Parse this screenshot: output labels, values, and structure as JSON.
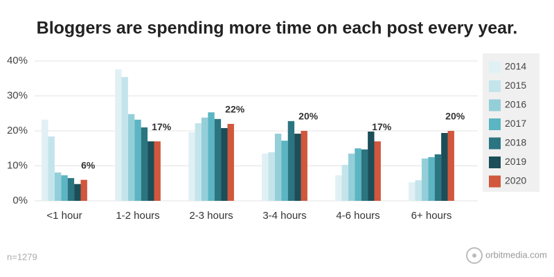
{
  "chart_data": {
    "type": "bar",
    "title": "Bloggers are spending more time on each post every year.",
    "categories": [
      "<1 hour",
      "1-2 hours",
      "2-3 hours",
      "3-4 hours",
      "4-6 hours",
      "6+ hours"
    ],
    "series": [
      {
        "name": "2014",
        "color": "#e1f0f4",
        "values": [
          23.2,
          37.6,
          19.6,
          13.5,
          7.3,
          5.3
        ]
      },
      {
        "name": "2015",
        "color": "#c4e4eb",
        "values": [
          18.4,
          35.4,
          22.2,
          13.9,
          10.3,
          5.9
        ]
      },
      {
        "name": "2016",
        "color": "#94cfd9",
        "values": [
          8.1,
          24.8,
          23.8,
          19.2,
          13.5,
          12.1
        ]
      },
      {
        "name": "2017",
        "color": "#5bb5c2",
        "values": [
          7.3,
          23.2,
          25.3,
          17.2,
          15,
          12.5
        ]
      },
      {
        "name": "2018",
        "color": "#2b7581",
        "values": [
          6.5,
          21,
          23.4,
          22.8,
          14.7,
          13.3
        ]
      },
      {
        "name": "2019",
        "color": "#1b4e58",
        "values": [
          4.8,
          17,
          20.8,
          19.2,
          19.8,
          19.4
        ]
      },
      {
        "name": "2020",
        "color": "#d1573d",
        "values": [
          6,
          17,
          22,
          20,
          17,
          20
        ],
        "value_labels": [
          "6%",
          "17%",
          "22%",
          "20%",
          "17%",
          "20%"
        ]
      }
    ],
    "ylim": [
      0,
      40
    ],
    "yticks": [
      {
        "value": 0,
        "label": "0%"
      },
      {
        "value": 10,
        "label": "10%"
      },
      {
        "value": 20,
        "label": "20%"
      },
      {
        "value": 30,
        "label": "30%"
      },
      {
        "value": 40,
        "label": "40%"
      }
    ],
    "grid": true,
    "legend": "right",
    "note": "n=1279",
    "source": "orbitmedia.com"
  }
}
